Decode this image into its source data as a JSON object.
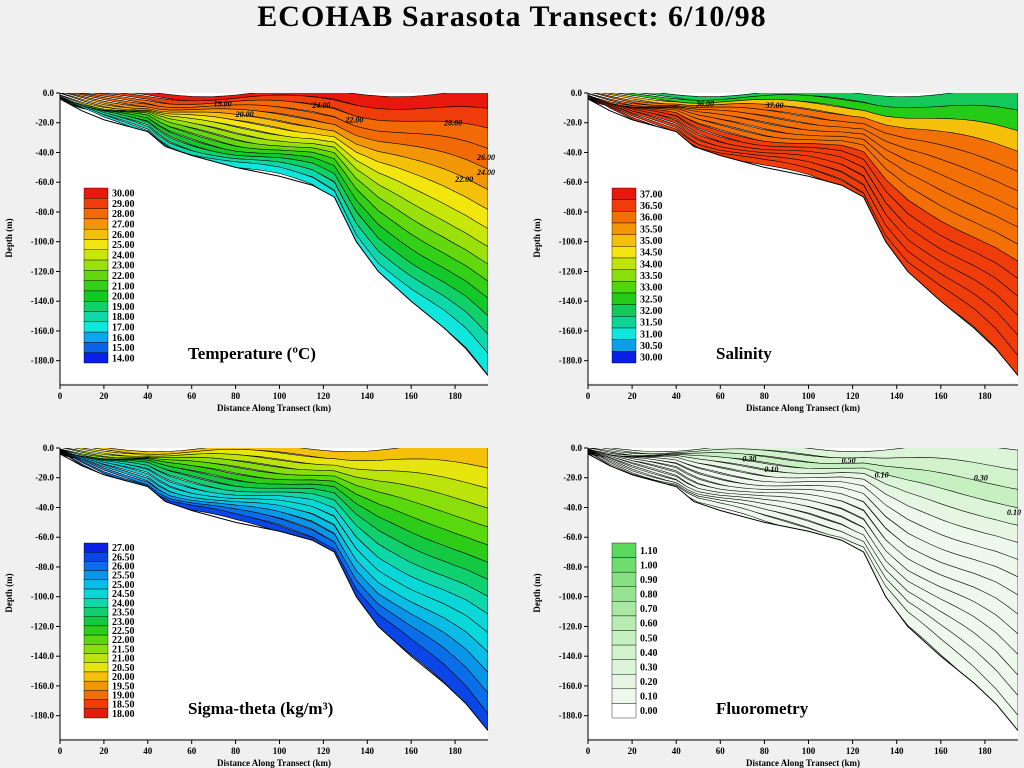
{
  "title": "ECOHAB Sarasota Transect: 6/10/98",
  "chart_data": [
    {
      "type": "heatmap",
      "title": "Temperature (ºC)",
      "xlabel": "Distance Along Transect (km)",
      "ylabel": "Depth (m)",
      "xlim": [
        0,
        195
      ],
      "ylim": [
        -195,
        0
      ],
      "xticks": [
        "0",
        "20",
        "40",
        "60",
        "80",
        "100",
        "120",
        "140",
        "160",
        "180"
      ],
      "yticks": [
        "0.0",
        "-20.0",
        "-40.0",
        "-60.0",
        "-80.0",
        "-100.0",
        "-120.0",
        "-140.0",
        "-160.0",
        "-180.0"
      ],
      "colorbar": [
        "30.00",
        "29.00",
        "28.00",
        "27.00",
        "26.00",
        "25.00",
        "24.00",
        "23.00",
        "22.00",
        "21.00",
        "20.00",
        "19.00",
        "18.00",
        "17.00",
        "16.00",
        "15.00",
        "14.00"
      ],
      "contour_labels": [
        "19.00",
        "24.00",
        "20.00",
        "22.00",
        "28.00",
        "26.00",
        "24.00",
        "22.00"
      ]
    },
    {
      "type": "heatmap",
      "title": "Salinity",
      "xlabel": "Distance Along Transect (km)",
      "ylabel": "Depth (m)",
      "xlim": [
        0,
        195
      ],
      "ylim": [
        -195,
        0
      ],
      "xticks": [
        "0",
        "20",
        "40",
        "60",
        "80",
        "100",
        "120",
        "140",
        "160",
        "180"
      ],
      "yticks": [
        "0.0",
        "-20.0",
        "-40.0",
        "-60.0",
        "-80.0",
        "-100.0",
        "-120.0",
        "-140.0",
        "-160.0",
        "-180.0"
      ],
      "colorbar": [
        "37.00",
        "36.50",
        "36.00",
        "35.50",
        "35.00",
        "34.50",
        "34.00",
        "33.50",
        "33.00",
        "32.50",
        "32.00",
        "31.50",
        "31.00",
        "30.50",
        "30.00"
      ],
      "contour_labels": [
        "36.00",
        "37.00"
      ]
    },
    {
      "type": "heatmap",
      "title": "Sigma-theta (kg/m³)",
      "xlabel": "Distance Along Transect (km)",
      "ylabel": "Depth (m)",
      "xlim": [
        0,
        195
      ],
      "ylim": [
        -195,
        0
      ],
      "xticks": [
        "0",
        "20",
        "40",
        "60",
        "80",
        "100",
        "120",
        "140",
        "160",
        "180"
      ],
      "yticks": [
        "0.0",
        "-20.0",
        "-40.0",
        "-60.0",
        "-80.0",
        "-100.0",
        "-120.0",
        "-140.0",
        "-160.0",
        "-180.0"
      ],
      "colorbar": [
        "27.00",
        "26.50",
        "26.00",
        "25.50",
        "25.00",
        "24.50",
        "24.00",
        "23.50",
        "23.00",
        "22.50",
        "22.00",
        "21.50",
        "21.00",
        "20.50",
        "20.00",
        "19.50",
        "19.00",
        "18.50",
        "18.00"
      ],
      "contour_labels": []
    },
    {
      "type": "heatmap",
      "title": "Fluorometry",
      "xlabel": "Distance Along Transect (km)",
      "ylabel": "Depth (m)",
      "xlim": [
        0,
        195
      ],
      "ylim": [
        -195,
        0
      ],
      "xticks": [
        "0",
        "20",
        "40",
        "60",
        "80",
        "100",
        "120",
        "140",
        "160",
        "180"
      ],
      "yticks": [
        "0.0",
        "-20.0",
        "-40.0",
        "-60.0",
        "-80.0",
        "-100.0",
        "-120.0",
        "-140.0",
        "-160.0",
        "-180.0"
      ],
      "colorbar": [
        "1.10",
        "1.00",
        "0.90",
        "0.80",
        "0.70",
        "0.60",
        "0.50",
        "0.40",
        "0.30",
        "0.20",
        "0.10",
        "0.00"
      ],
      "contour_labels": [
        "0.30",
        "0.50",
        "0.10",
        "0.10",
        "0.30",
        "0.10"
      ]
    }
  ],
  "colors": {
    "temperature_scale": [
      "#e8180c",
      "#ee3c0a",
      "#f26a06",
      "#f29606",
      "#f5c00a",
      "#f2e60e",
      "#c8e60a",
      "#9ae00c",
      "#64d80e",
      "#34d018",
      "#14c82a",
      "#10d068",
      "#0ed8a8",
      "#10e6dc",
      "#0aa8e8",
      "#0a64e6",
      "#0a1ee6"
    ],
    "salinity_scale": [
      "#e8180c",
      "#ee3c0a",
      "#f27006",
      "#f29606",
      "#f5c00a",
      "#f2e60e",
      "#c0e40a",
      "#8ade0c",
      "#52d60e",
      "#24cc18",
      "#14c85a",
      "#0ed498",
      "#10e6dc",
      "#0aa0e8",
      "#0a1ee6"
    ],
    "sigma_scale": [
      "#0a1ee6",
      "#0a46e6",
      "#0a6ee8",
      "#0a96e8",
      "#0abce6",
      "#0ad8d8",
      "#0ed8a8",
      "#10d070",
      "#14c842",
      "#2ccc18",
      "#5ad80e",
      "#8ade0c",
      "#bce40a",
      "#e6e60e",
      "#f5c00a",
      "#f29606",
      "#f27006",
      "#ee3c0a",
      "#e8180c"
    ],
    "fluor_scale": [
      "#5cd85c",
      "#70dc6e",
      "#84e080",
      "#96e492",
      "#a8e8a2",
      "#b8ecb2",
      "#c6f0c0",
      "#d2f2cc",
      "#dcf4d8",
      "#e6f6e2",
      "#eef8ec",
      "#ffffff"
    ]
  }
}
